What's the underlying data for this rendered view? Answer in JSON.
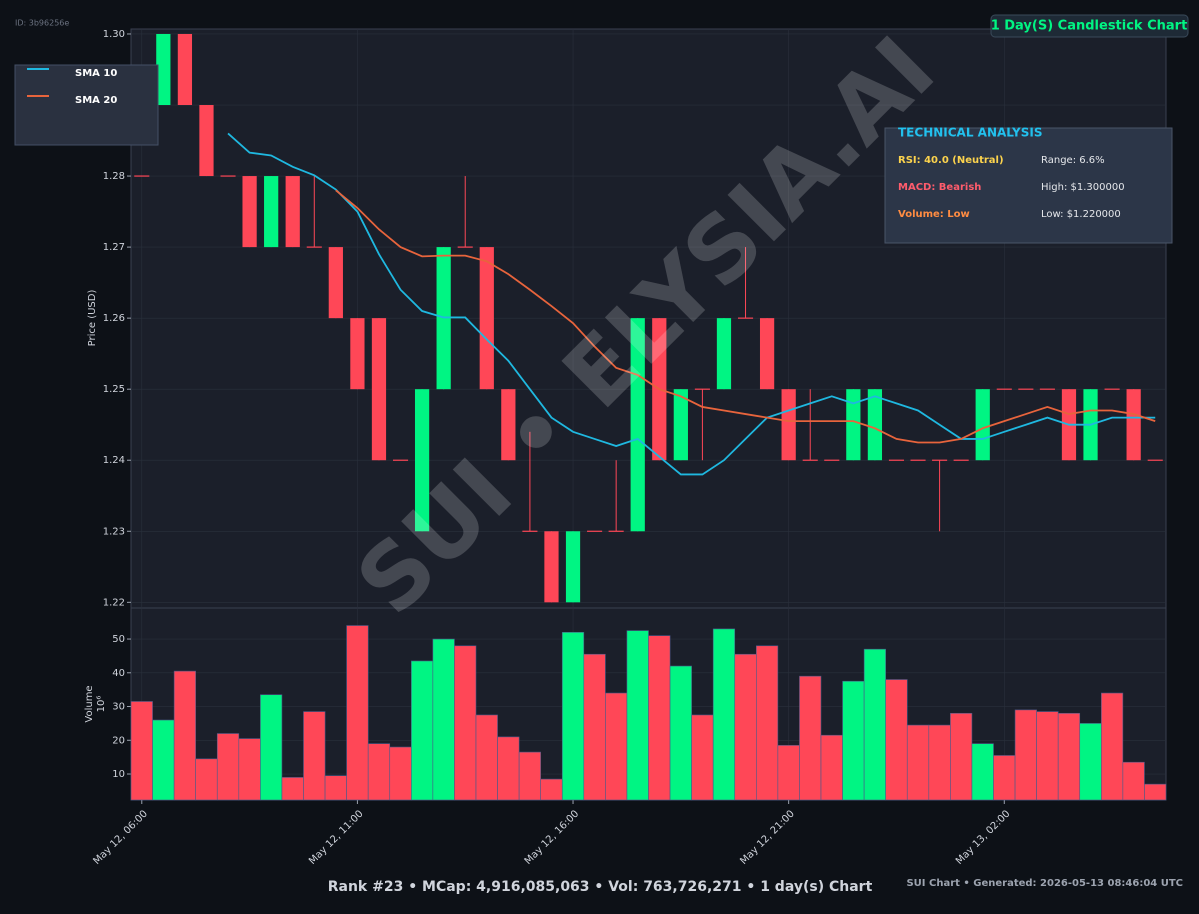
{
  "page_id": "ID: 3b96256e",
  "watermark": "SUI • ELYSIA.AI",
  "analysis": {
    "title": "TECHNICAL ANALYSIS",
    "rsi": "RSI: 40.0 (Neutral)",
    "range": "Range: 6.6%",
    "macd": "MACD: Bearish",
    "high": "High: $1.300000",
    "volume": "Volume: Low",
    "low": "Low: $1.220000"
  },
  "footer": {
    "main": "Rank #23 • MCap: 4,916,085,063 • Vol: 763,726,271 • 1 day(s) Chart",
    "generated": "SUI Chart • Generated: 2026-05-13 08:46:04 UTC"
  },
  "chart_data": {
    "type": "candlestick",
    "title": "1 Day(S) Candlestick Chart",
    "categories": [
      "May 12, 06:00",
      null,
      null,
      null,
      null,
      null,
      null,
      null,
      null,
      null,
      "May 12, 11:00",
      null,
      null,
      null,
      null,
      null,
      null,
      null,
      null,
      null,
      "May 12, 16:00",
      null,
      null,
      null,
      null,
      null,
      null,
      null,
      null,
      null,
      "May 12, 21:00",
      null,
      null,
      null,
      null,
      null,
      null,
      null,
      null,
      null,
      "May 13, 02:00",
      null,
      null,
      null,
      null,
      null,
      null,
      null
    ],
    "open": [
      1.28,
      1.29,
      1.3,
      1.29,
      1.28,
      1.28,
      1.27,
      1.28,
      1.27,
      1.27,
      1.26,
      1.26,
      1.24,
      1.23,
      1.25,
      1.27,
      1.27,
      1.25,
      1.23,
      1.23,
      1.22,
      1.23,
      1.23,
      1.23,
      1.26,
      1.24,
      1.25,
      1.25,
      1.26,
      1.26,
      1.25,
      1.24,
      1.24,
      1.24,
      1.24,
      1.24,
      1.24,
      1.24,
      1.24,
      1.24,
      1.25,
      1.25,
      1.25,
      1.25,
      1.24,
      1.25,
      1.25,
      1.24
    ],
    "high": [
      1.28,
      1.3,
      1.3,
      1.29,
      1.28,
      1.28,
      1.28,
      1.28,
      1.28,
      1.27,
      1.26,
      1.26,
      1.24,
      1.25,
      1.27,
      1.28,
      1.27,
      1.25,
      1.244,
      1.23,
      1.23,
      1.23,
      1.24,
      1.26,
      1.26,
      1.25,
      1.25,
      1.26,
      1.27,
      1.26,
      1.25,
      1.25,
      1.24,
      1.25,
      1.25,
      1.24,
      1.24,
      1.24,
      1.24,
      1.25,
      1.25,
      1.25,
      1.25,
      1.25,
      1.25,
      1.25,
      1.25,
      1.24
    ],
    "low": [
      1.28,
      1.29,
      1.29,
      1.28,
      1.28,
      1.27,
      1.27,
      1.27,
      1.27,
      1.26,
      1.25,
      1.24,
      1.24,
      1.23,
      1.25,
      1.27,
      1.25,
      1.24,
      1.23,
      1.22,
      1.22,
      1.23,
      1.23,
      1.23,
      1.24,
      1.24,
      1.24,
      1.25,
      1.26,
      1.25,
      1.24,
      1.24,
      1.24,
      1.24,
      1.24,
      1.24,
      1.24,
      1.23,
      1.24,
      1.24,
      1.25,
      1.25,
      1.25,
      1.24,
      1.24,
      1.25,
      1.24,
      1.24
    ],
    "close": [
      1.28,
      1.3,
      1.29,
      1.28,
      1.28,
      1.27,
      1.28,
      1.27,
      1.27,
      1.26,
      1.25,
      1.24,
      1.24,
      1.25,
      1.27,
      1.27,
      1.25,
      1.24,
      1.23,
      1.22,
      1.23,
      1.23,
      1.23,
      1.26,
      1.24,
      1.25,
      1.25,
      1.26,
      1.26,
      1.25,
      1.24,
      1.24,
      1.24,
      1.25,
      1.25,
      1.24,
      1.24,
      1.24,
      1.24,
      1.25,
      1.25,
      1.25,
      1.25,
      1.24,
      1.25,
      1.25,
      1.24,
      1.24
    ],
    "up_color": "#00f583",
    "down_color": "#ff4757",
    "series": [
      {
        "name": "SMA 10",
        "color": "#1fb8e0",
        "values": [
          null,
          null,
          null,
          null,
          1.286,
          1.2833,
          1.2829,
          1.2813,
          1.2801,
          1.2781,
          1.275,
          1.269,
          1.264,
          1.261,
          1.2601,
          1.2601,
          1.257,
          1.254,
          1.25,
          1.246,
          1.244,
          1.243,
          1.242,
          1.243,
          1.2405,
          1.238,
          1.238,
          1.24,
          1.243,
          1.246,
          1.247,
          1.248,
          1.249,
          1.248,
          1.249,
          1.248,
          1.247,
          1.245,
          1.243,
          1.243,
          1.244,
          1.245,
          1.246,
          1.245,
          1.245,
          1.246,
          1.246,
          1.246
        ]
      },
      {
        "name": "SMA 20",
        "color": "#e8643c",
        "values": [
          null,
          null,
          null,
          null,
          null,
          null,
          null,
          null,
          null,
          1.278,
          1.2755,
          1.2725,
          1.27,
          1.2687,
          1.2688,
          1.2688,
          1.268,
          1.2662,
          1.264,
          1.2617,
          1.2593,
          1.256,
          1.253,
          1.252,
          1.25,
          1.249,
          1.2475,
          1.247,
          1.2465,
          1.246,
          1.2455,
          1.2455,
          1.2455,
          1.2455,
          1.2445,
          1.243,
          1.2425,
          1.2425,
          1.243,
          1.2445,
          1.2455,
          1.2465,
          1.2475,
          1.2465,
          1.247,
          1.247,
          1.2465,
          1.2455
        ]
      }
    ],
    "ylabel": "Price (USD)",
    "ylim": [
      1.2192,
      1.3007
    ],
    "yticks": [
      1.22,
      1.23,
      1.24,
      1.25,
      1.26,
      1.27,
      1.28,
      1.29,
      {
        "value": 1.3,
        "label": "1.30"
      }
    ],
    "grid": true,
    "volume": {
      "ylabel": "Volume",
      "multiplier": "10⁶",
      "values": [
        31.5,
        26,
        40.5,
        14.5,
        22,
        20.5,
        33.5,
        9,
        28.5,
        9.5,
        54,
        19,
        18,
        43.5,
        50,
        48,
        27.5,
        21,
        16.5,
        8.5,
        52,
        45.5,
        34,
        52.5,
        51,
        42,
        27.5,
        53,
        45.5,
        48,
        18.5,
        39,
        21.5,
        37.5,
        47,
        38,
        24.5,
        24.5,
        28,
        19,
        15.5,
        29,
        28.5,
        28,
        25,
        34,
        13.5,
        7
      ],
      "ylim": [
        2.3,
        59.2
      ],
      "yticks": [
        10,
        20,
        30,
        40,
        50
      ]
    }
  }
}
